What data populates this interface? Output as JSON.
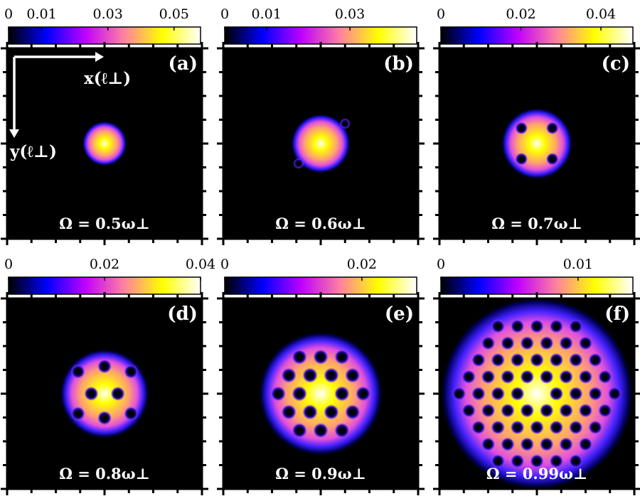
{
  "chart_data": {
    "type": "heatmap",
    "colormap": [
      "#000000",
      "#0000ff",
      "#c000ff",
      "#ff80a0",
      "#ffff00",
      "#ffffff"
    ],
    "axes_annotation": {
      "x": "x(ℓ⊥)",
      "y": "y(ℓ⊥)"
    },
    "panels": [
      {
        "label": "(a)",
        "omega": "Ω = 0.5ω⊥",
        "cbar_ticks": [
          "0",
          "0.01",
          "0.03",
          "0.05"
        ],
        "cbar_range": [
          0,
          0.058
        ],
        "condensate_radius": 0.45,
        "vortices": []
      },
      {
        "label": "(b)",
        "omega": "Ω = 0.6ω⊥",
        "cbar_ticks": [
          "0",
          "0.01",
          "0.03"
        ],
        "cbar_range": [
          0,
          0.046
        ],
        "condensate_radius": 0.6,
        "vortices": [
          [
            0.55,
            -0.45
          ],
          [
            -0.5,
            0.45
          ]
        ]
      },
      {
        "label": "(c)",
        "omega": "Ω = 0.7ω⊥",
        "cbar_ticks": [
          "0",
          "0.02",
          "0.04"
        ],
        "cbar_range": [
          0,
          0.048
        ],
        "condensate_radius": 0.72,
        "vortices": [
          [
            -0.35,
            -0.35
          ],
          [
            0.35,
            -0.35
          ],
          [
            -0.35,
            0.35
          ],
          [
            0.35,
            0.35
          ]
        ]
      },
      {
        "label": "(d)",
        "omega": "Ω = 0.8ω⊥",
        "cbar_ticks": [
          "0",
          "0.02",
          "0.04"
        ],
        "cbar_range": [
          0,
          0.04
        ],
        "condensate_radius": 0.9,
        "vortices": [
          [
            0,
            -0.62
          ],
          [
            -0.6,
            -0.5
          ],
          [
            0.6,
            -0.5
          ],
          [
            -0.3,
            0
          ],
          [
            0.3,
            0
          ],
          [
            -0.6,
            0.45
          ],
          [
            0.6,
            0.45
          ],
          [
            0,
            0.55
          ]
        ]
      },
      {
        "label": "(e)",
        "omega": "Ω = 0.9ω⊥",
        "cbar_ticks": [
          "0",
          "0.02"
        ],
        "cbar_range": [
          0,
          0.028
        ],
        "condensate_radius": 1.25,
        "vortices": "hex:0.48:1.12"
      },
      {
        "label": "(f)",
        "omega": "Ω = 0.99ω⊥",
        "cbar_ticks": [
          "0",
          "0.01"
        ],
        "cbar_range": [
          0,
          0.014
        ],
        "condensate_radius": 1.95,
        "vortices": "hex:0.44:1.85"
      }
    ]
  }
}
